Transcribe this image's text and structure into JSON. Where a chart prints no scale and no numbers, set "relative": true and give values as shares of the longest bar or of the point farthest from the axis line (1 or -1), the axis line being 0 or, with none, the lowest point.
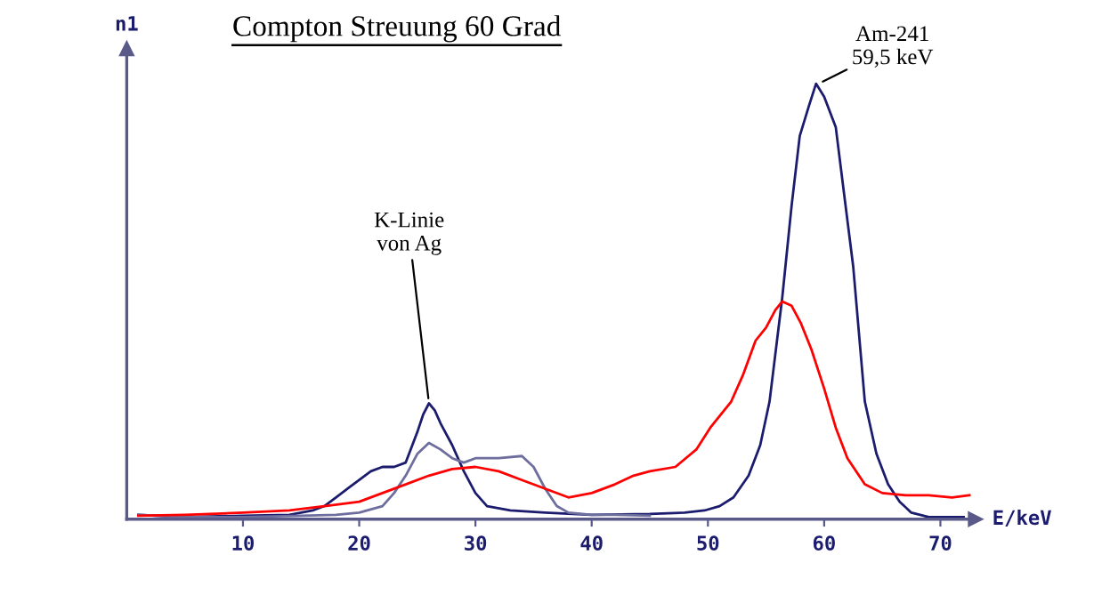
{
  "chart_data": {
    "type": "line",
    "title": "Compton Streuung 60 Grad",
    "xlabel": "E/keV",
    "ylabel": "n1",
    "relative": true,
    "xlim": [
      0,
      73
    ],
    "xticks": [
      10,
      20,
      30,
      40,
      50,
      60,
      70
    ],
    "grid": false,
    "legend": false,
    "marker": "none",
    "line_style": "solid",
    "series": [
      {
        "color": "#1c1c6e",
        "x": [
          1,
          5,
          10,
          14,
          16,
          17,
          18,
          19,
          20,
          21,
          22,
          23,
          24,
          25,
          25.5,
          26,
          26.5,
          27,
          28,
          29,
          30,
          31,
          33,
          36,
          40,
          45,
          48,
          49.7,
          51,
          52.2,
          53.5,
          54.5,
          55.3,
          56.4,
          57.2,
          57.9,
          58.7,
          59.3,
          60,
          61,
          61.7,
          62.5,
          63.5,
          64.5,
          65.5,
          66.5,
          67.5,
          69,
          72
        ],
        "values": [
          0.01,
          0.005,
          0.008,
          0.01,
          0.02,
          0.03,
          0.05,
          0.07,
          0.09,
          0.11,
          0.12,
          0.12,
          0.13,
          0.2,
          0.24,
          0.266,
          0.25,
          0.22,
          0.17,
          0.11,
          0.06,
          0.03,
          0.02,
          0.015,
          0.01,
          0.012,
          0.015,
          0.02,
          0.03,
          0.05,
          0.1,
          0.17,
          0.27,
          0.51,
          0.72,
          0.88,
          0.95,
          1.0,
          0.97,
          0.9,
          0.75,
          0.58,
          0.27,
          0.15,
          0.08,
          0.04,
          0.015,
          0.005,
          0.005
        ]
      },
      {
        "color": "#6e6e9e",
        "x": [
          1,
          5,
          10,
          15,
          18,
          20,
          22,
          23,
          24,
          25,
          26,
          27,
          28,
          29,
          30,
          32,
          34,
          35,
          36,
          37,
          38,
          40,
          42,
          45
        ],
        "values": [
          0.01,
          0.005,
          0.005,
          0.008,
          0.01,
          0.015,
          0.03,
          0.06,
          0.1,
          0.15,
          0.175,
          0.16,
          0.14,
          0.13,
          0.14,
          0.14,
          0.145,
          0.12,
          0.07,
          0.03,
          0.015,
          0.01,
          0.01,
          0.008
        ]
      },
      {
        "color": "#ff0000",
        "x": [
          1,
          5,
          10,
          14,
          17,
          20,
          22,
          24,
          26,
          28,
          30,
          32,
          34,
          36,
          38,
          40,
          42,
          43.6,
          45,
          47.2,
          49,
          50.2,
          52,
          53,
          54.1,
          55,
          55.8,
          56.4,
          57.2,
          58,
          58.9,
          60,
          61,
          62,
          63.5,
          65,
          67,
          69,
          71,
          72.5
        ],
        "values": [
          0.008,
          0.01,
          0.015,
          0.02,
          0.03,
          0.04,
          0.06,
          0.08,
          0.1,
          0.115,
          0.12,
          0.11,
          0.09,
          0.07,
          0.05,
          0.06,
          0.08,
          0.1,
          0.11,
          0.12,
          0.16,
          0.21,
          0.27,
          0.33,
          0.41,
          0.44,
          0.48,
          0.5,
          0.49,
          0.45,
          0.39,
          0.3,
          0.21,
          0.14,
          0.08,
          0.06,
          0.055,
          0.055,
          0.05,
          0.055
        ]
      }
    ],
    "annotations": [
      {
        "text": "K-Linie\nvon Ag",
        "x": 26,
        "y": 0.266
      },
      {
        "text": "Am-241\n59,5 keV",
        "x": 59.5,
        "y": 1.0
      }
    ]
  }
}
